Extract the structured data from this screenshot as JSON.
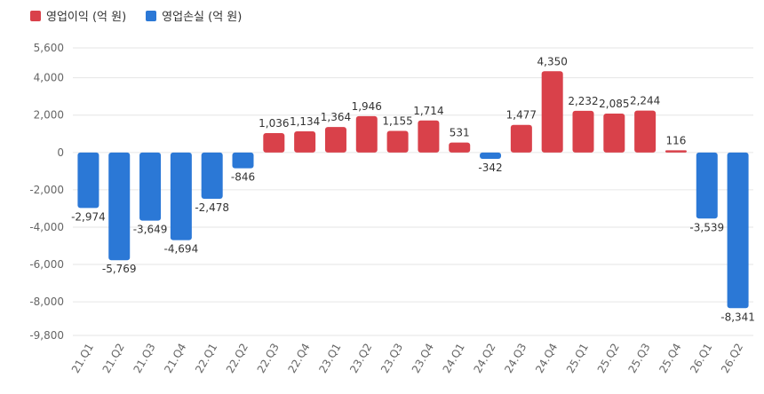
{
  "colors": {
    "profit": "#d9414a",
    "loss": "#2b78d6",
    "grid": "#e6e6e6",
    "axis_text": "#666666",
    "label_text": "#333333"
  },
  "chart_data": {
    "type": "bar",
    "legend": [
      {
        "name": "영업이익 (억 원)",
        "color": "#d9414a"
      },
      {
        "name": "영업손실 (억 원)",
        "color": "#2b78d6"
      }
    ],
    "legend_position": "top-left",
    "categories": [
      "21.Q1",
      "21.Q2",
      "21.Q3",
      "21.Q4",
      "22.Q1",
      "22.Q2",
      "22.Q3",
      "22.Q4",
      "23.Q1",
      "23.Q2",
      "23.Q3",
      "23.Q4",
      "24.Q1",
      "24.Q2",
      "24.Q3",
      "24.Q4",
      "25.Q1",
      "25.Q2",
      "25.Q3",
      "25.Q4",
      "26.Q1",
      "26.Q2"
    ],
    "values": [
      -2974,
      -5769,
      -3649,
      -4694,
      -2478,
      -846,
      1036,
      1134,
      1364,
      1946,
      1155,
      1714,
      531,
      -342,
      1477,
      4350,
      2232,
      2085,
      2244,
      116,
      -3539,
      -8341
    ],
    "value_labels": [
      "-2,974",
      "-5,769",
      "-3,649",
      "-4,694",
      "-2,478",
      "-846",
      "1,036",
      "1,134",
      "1,364",
      "1,946",
      "1,155",
      "1,714",
      "531",
      "-342",
      "1,477",
      "4,350",
      "2,232",
      "2,085",
      "2,244",
      "116",
      "-3,539",
      "-8,341"
    ],
    "yticks": [
      5600,
      4000,
      2000,
      0,
      -2000,
      -4000,
      -6000,
      -8000,
      -9800
    ],
    "ytick_labels": [
      "5,600",
      "4,000",
      "2,000",
      "0",
      "-2,000",
      "-4,000",
      "-6,000",
      "-8,000",
      "-9,800"
    ],
    "ylim": [
      -9800,
      5600
    ],
    "grid": true
  }
}
